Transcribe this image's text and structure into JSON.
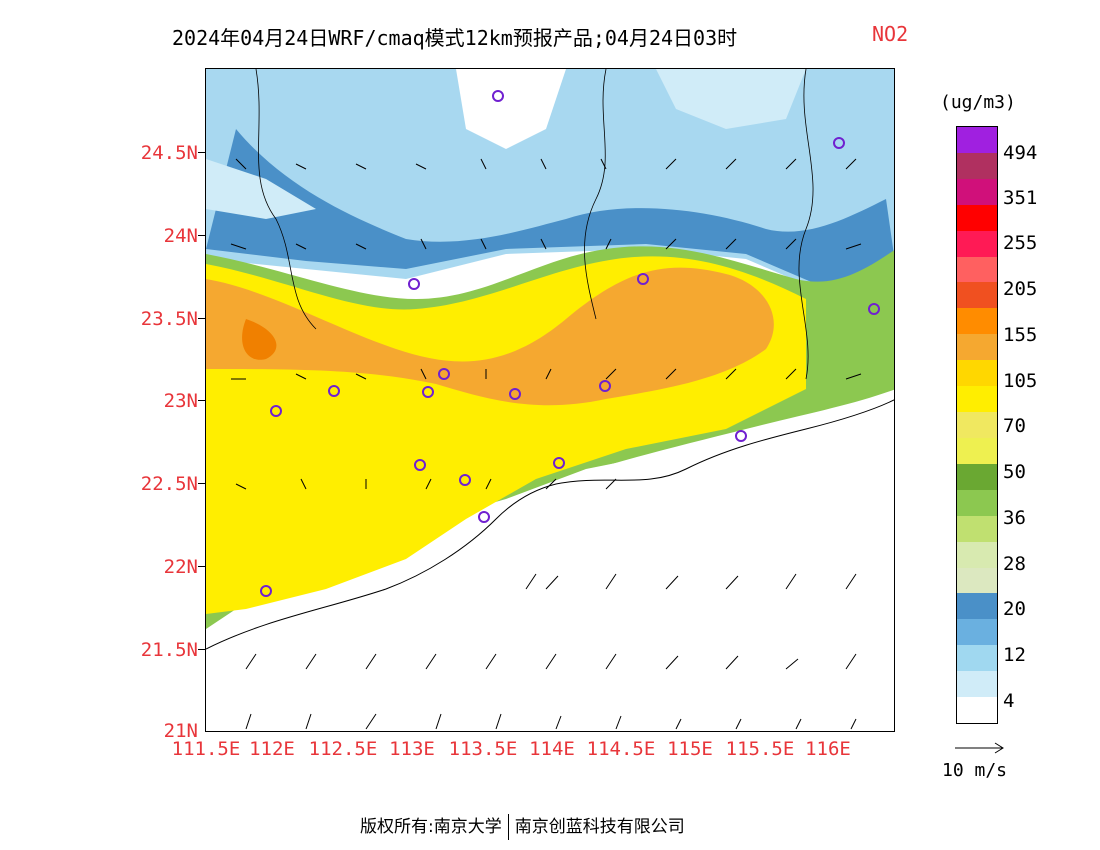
{
  "title": "2024年04月24日WRF/cmaq模式12km预报产品;04月24日03时",
  "species": "NO2",
  "unit": "(ug/m3)",
  "lat_labels": [
    "24.5N",
    "24N",
    "23.5N",
    "23N",
    "22.5N",
    "22N",
    "21.5N",
    "21N"
  ],
  "lon_labels": [
    "111.5E",
    "112E",
    "112.5E",
    "113E",
    "113.5E",
    "114E",
    "114.5E",
    "115E",
    "115.5E",
    "116E"
  ],
  "legend": {
    "labels": [
      "494",
      "351",
      "255",
      "205",
      "155",
      "105",
      "70",
      "50",
      "36",
      "28",
      "20",
      "12",
      "4"
    ],
    "colors": [
      "#a020e0",
      "#b03060",
      "#d0107a",
      "#ff0000",
      "#ff1a55",
      "#ff6060",
      "#f05020",
      "#ff8c00",
      "#f5a830",
      "#ffd700",
      "#ffee00",
      "#f0e860",
      "#eef050",
      "#6aa832",
      "#8cc850",
      "#c0e070",
      "#d8eab0",
      "#dce8c0",
      "#4a90c8",
      "#6ab0e0",
      "#a0d8f0",
      "#d0ecf8",
      "#ffffff"
    ]
  },
  "wind_scale_label": "10 m/s",
  "copyright": {
    "left": "版权所有:南京大学",
    "right": "南京创蓝科技有限公司"
  }
}
